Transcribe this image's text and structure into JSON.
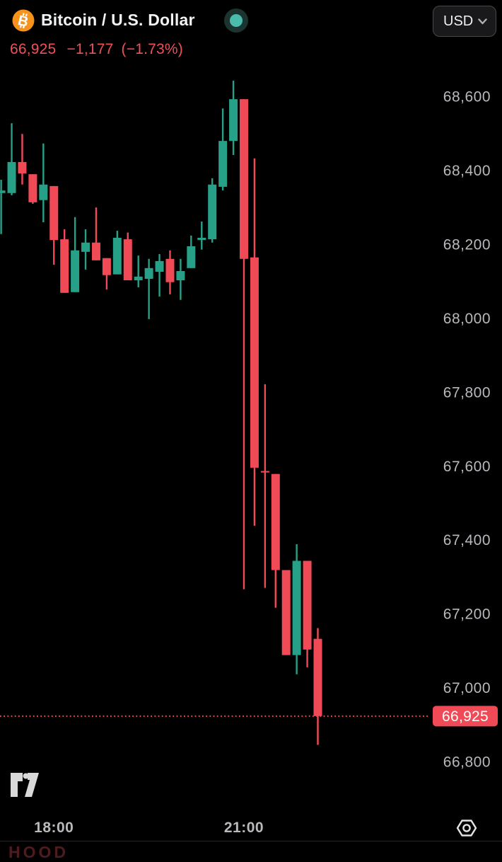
{
  "header": {
    "title": "Bitcoin / U.S. Dollar",
    "market_status": "open",
    "currency_button": {
      "label": "USD"
    }
  },
  "quote": {
    "last_price": "66,925",
    "change": "−1,177",
    "change_percent": "(−1.73%)",
    "direction": "down"
  },
  "chart_data": {
    "type": "candlestick",
    "title": "Bitcoin / U.S. Dollar",
    "interval_minutes": 10,
    "grid": false,
    "legend_position": "none",
    "ylim": [
      66670,
      68690
    ],
    "y_ticks": [
      68600,
      68400,
      68200,
      68000,
      67800,
      67600,
      67400,
      67200,
      67000,
      66800
    ],
    "x_time_labels": [
      {
        "label": "18:00",
        "candle_index": 5
      },
      {
        "label": "21:00",
        "candle_index": 23
      }
    ],
    "current_price": 66925,
    "current_price_label": "66,925",
    "candles_ohlc": [
      [
        68340,
        68376,
        68229,
        68347
      ],
      [
        68340,
        68529,
        68334,
        68424
      ],
      [
        68424,
        68500,
        68363,
        68393
      ],
      [
        68391,
        68391,
        68311,
        68315
      ],
      [
        68321,
        68474,
        68261,
        68363
      ],
      [
        68359,
        68359,
        68146,
        68213
      ],
      [
        68215,
        68242,
        68070,
        68070
      ],
      [
        68072,
        68275,
        68072,
        68185
      ],
      [
        68181,
        68242,
        68133,
        68206
      ],
      [
        68206,
        68301,
        68158,
        68158
      ],
      [
        68164,
        68164,
        68079,
        68118
      ],
      [
        68120,
        68238,
        68120,
        68219
      ],
      [
        68215,
        68233,
        68104,
        68104
      ],
      [
        68104,
        68171,
        68085,
        68114
      ],
      [
        68108,
        68162,
        67999,
        68137
      ],
      [
        68127,
        68175,
        68060,
        68156
      ],
      [
        68162,
        68185,
        68066,
        68099
      ],
      [
        68104,
        68162,
        68051,
        68129
      ],
      [
        68137,
        68225,
        68137,
        68196
      ],
      [
        68213,
        68263,
        68187,
        68219
      ],
      [
        68215,
        68380,
        68206,
        68363
      ],
      [
        68357,
        68569,
        68347,
        68481
      ],
      [
        68481,
        68644,
        68443,
        68594
      ],
      [
        68594,
        68594,
        67268,
        68162
      ],
      [
        68166,
        68434,
        67440,
        67597
      ],
      [
        67588,
        67823,
        67272,
        67584
      ],
      [
        67580,
        67580,
        67218,
        67320
      ],
      [
        67320,
        67320,
        67090,
        67090
      ],
      [
        67090,
        67390,
        67038,
        67345
      ],
      [
        67345,
        67345,
        67057,
        67105
      ],
      [
        67134,
        67163,
        66847,
        66925
      ]
    ],
    "colors": {
      "up": "#26a087",
      "down": "#ef4a56",
      "axis_text": "#b8b9bd",
      "current_price_line": "#ef4a56",
      "badge_bg": "#ef4a56",
      "badge_text": "#ffffff"
    }
  },
  "icons": {
    "symbol": "bitcoin-icon",
    "currency_chevron": "chevron-down-icon",
    "bottom_right": "settings-hexagon-icon",
    "watermark": "tradingview-logo"
  },
  "brand_colors": {
    "bitcoin_orange": "#f7931a",
    "status_teal": "#4bbcab",
    "quote_red": "#f0505a"
  },
  "footer": {
    "partial_next_row_ticker": "HOOD"
  }
}
